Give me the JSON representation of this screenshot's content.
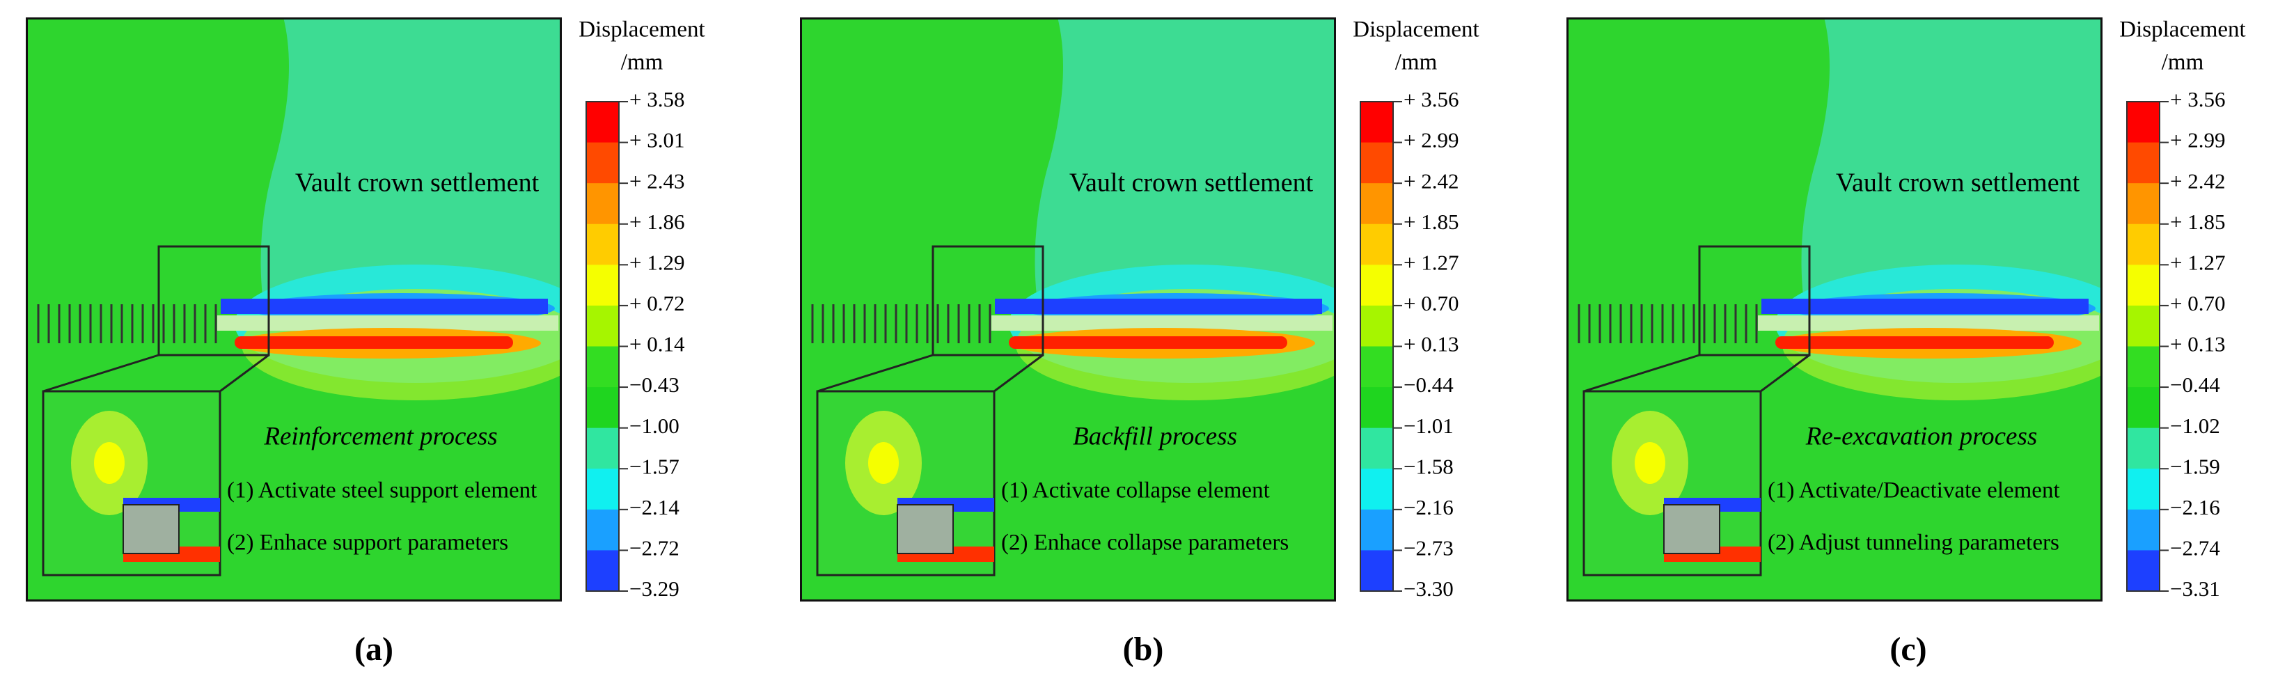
{
  "panels": [
    {
      "legend_title": "Displacement",
      "legend_unit": "/mm",
      "legend_labels": [
        "+ 3.58",
        "+ 3.01",
        "+ 2.43",
        "+ 1.86",
        "+ 1.29",
        "+ 0.72",
        "+ 0.14",
        "−0.43",
        "−1.00",
        "−1.57",
        "−2.14",
        "−2.72",
        "−3.29"
      ],
      "annotation": "Vault crown settlement",
      "process": "Reinforcement process",
      "steps": [
        "(1) Activate steel support element",
        "(2) Enhace support parameters"
      ],
      "caption": "(a)"
    },
    {
      "legend_title": "Displacement",
      "legend_unit": "/mm",
      "legend_labels": [
        "+ 3.56",
        "+ 2.99",
        "+ 2.42",
        "+ 1.85",
        "+ 1.27",
        "+ 0.70",
        "+ 0.13",
        "−0.44",
        "−1.01",
        "−1.58",
        "−2.16",
        "−2.73",
        "−3.30"
      ],
      "annotation": "Vault crown settlement",
      "process": "Backfill process",
      "steps": [
        "(1) Activate collapse element",
        "(2) Enhace collapse parameters"
      ],
      "caption": "(b)"
    },
    {
      "legend_title": "Displacement",
      "legend_unit": "/mm",
      "legend_labels": [
        "+ 3.56",
        "+ 2.99",
        "+ 2.42",
        "+ 1.85",
        "+ 1.27",
        "+ 0.70",
        "+ 0.13",
        "−0.44",
        "−1.02",
        "−1.59",
        "−2.16",
        "−2.74",
        "−3.31"
      ],
      "annotation": "Vault crown settlement",
      "process": "Re-excavation process",
      "steps": [
        "(1) Activate/Deactivate element",
        "(2) Adjust tunneling parameters"
      ],
      "caption": "(c)"
    }
  ]
}
